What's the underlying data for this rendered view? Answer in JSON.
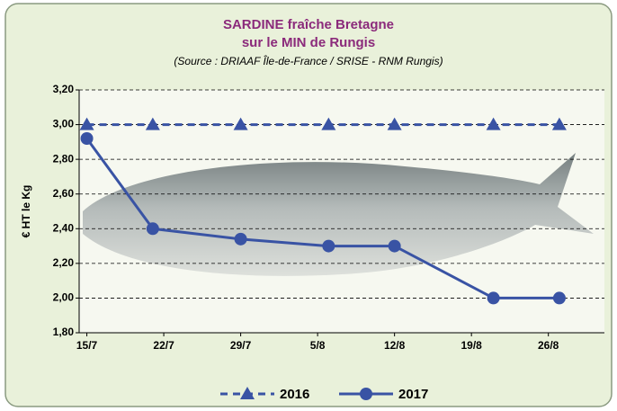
{
  "chart_data": {
    "type": "line",
    "title": [
      "SARDINE  fraîche Bretagne",
      "sur le MIN de Rungis"
    ],
    "subtitle": "(Source : DRIAAF Île-de-France / SRISE - RNM Rungis)",
    "y_label": "€ HT le Kg",
    "x": [
      15,
      21,
      29,
      37,
      43,
      52,
      58
    ],
    "xlim": [
      14.3,
      62.1
    ],
    "xticks": [
      {
        "value": 15,
        "label": "15/7"
      },
      {
        "value": 22,
        "label": "22/7"
      },
      {
        "value": 29,
        "label": "29/7"
      },
      {
        "value": 36,
        "label": "5/8"
      },
      {
        "value": 43,
        "label": "12/8"
      },
      {
        "value": 50,
        "label": "19/8"
      },
      {
        "value": 57,
        "label": "26/8"
      }
    ],
    "ylim": [
      1.8,
      3.2
    ],
    "yticks": [
      {
        "value": 1.8,
        "label": "1,80"
      },
      {
        "value": 2.0,
        "label": "2,00"
      },
      {
        "value": 2.2,
        "label": "2,20"
      },
      {
        "value": 2.4,
        "label": "2,40"
      },
      {
        "value": 2.6,
        "label": "2,60"
      },
      {
        "value": 2.8,
        "label": "2,80"
      },
      {
        "value": 3.0,
        "label": "3,00"
      },
      {
        "value": 3.2,
        "label": "3,20"
      }
    ],
    "grid": true,
    "legend": "bottom",
    "series": [
      {
        "name": "2016",
        "color": "#3953a4",
        "line_style": "dashed",
        "marker": "triangle",
        "values": [
          3.0,
          3.0,
          3.0,
          3.0,
          3.0,
          3.0,
          3.0
        ]
      },
      {
        "name": "2017",
        "color": "#3953a4",
        "line_style": "solid",
        "marker": "circle",
        "values": [
          2.92,
          2.4,
          2.34,
          2.3,
          2.3,
          2.0,
          2.0
        ]
      }
    ]
  }
}
